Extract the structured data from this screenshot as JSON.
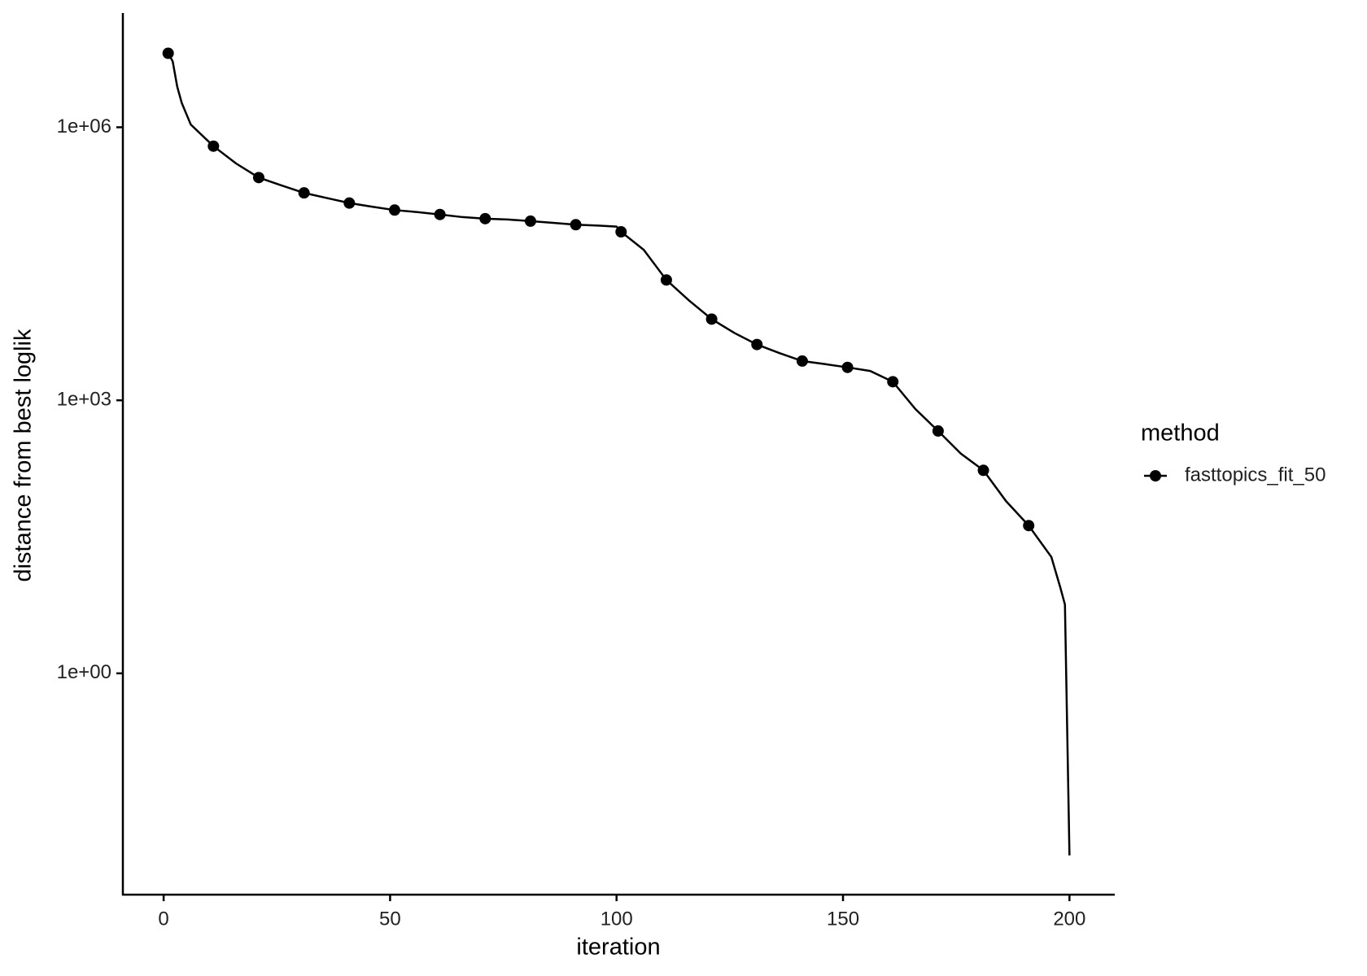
{
  "chart_data": {
    "type": "line",
    "xlabel": "iteration",
    "ylabel": "distance from best loglik",
    "legend_title": "method",
    "legend_position": "right",
    "log_y": true,
    "grid": false,
    "xlim": [
      -9,
      210
    ],
    "xticks": [
      0,
      50,
      100,
      150,
      200
    ],
    "ylim": [
      0.0037,
      18000000
    ],
    "yticks": [
      {
        "value": 1,
        "label": "1e+00"
      },
      {
        "value": 1000,
        "label": "1e+03"
      },
      {
        "value": 1000000,
        "label": "1e+06"
      }
    ],
    "series": [
      {
        "name": "fasttopics_fit_50",
        "color": "#000000",
        "x": [
          1,
          11,
          21,
          31,
          41,
          51,
          61,
          71,
          81,
          91,
          101,
          111,
          121,
          131,
          141,
          151,
          161,
          171,
          181,
          191
        ],
        "values": [
          6500000,
          620000,
          280000,
          190000,
          147000,
          123000,
          110000,
          99000,
          93000,
          85000,
          71000,
          21000,
          7800,
          4100,
          2700,
          2300,
          1600,
          460,
          170,
          42
        ],
        "line_x": [
          1,
          2,
          3,
          4,
          6,
          11,
          16,
          21,
          26,
          31,
          36,
          41,
          46,
          51,
          56,
          61,
          66,
          71,
          76,
          81,
          86,
          91,
          96,
          100,
          101,
          106,
          111,
          116,
          121,
          126,
          131,
          136,
          141,
          146,
          151,
          156,
          161,
          166,
          171,
          176,
          181,
          186,
          191,
          196,
          198,
          199,
          200
        ],
        "line_values": [
          6500000,
          5300000,
          2800000,
          1850000,
          1070000,
          620000,
          400000,
          280000,
          230000,
          190000,
          167000,
          147000,
          134000,
          123000,
          117000,
          110000,
          103000,
          99000,
          97000,
          93000,
          89000,
          85000,
          83000,
          81000,
          71000,
          45000,
          21000,
          12500,
          7800,
          5500,
          4100,
          3300,
          2700,
          2500,
          2300,
          2100,
          1600,
          800,
          460,
          260,
          170,
          78,
          42,
          19,
          8.7,
          5.7,
          0.01
        ]
      }
    ]
  }
}
